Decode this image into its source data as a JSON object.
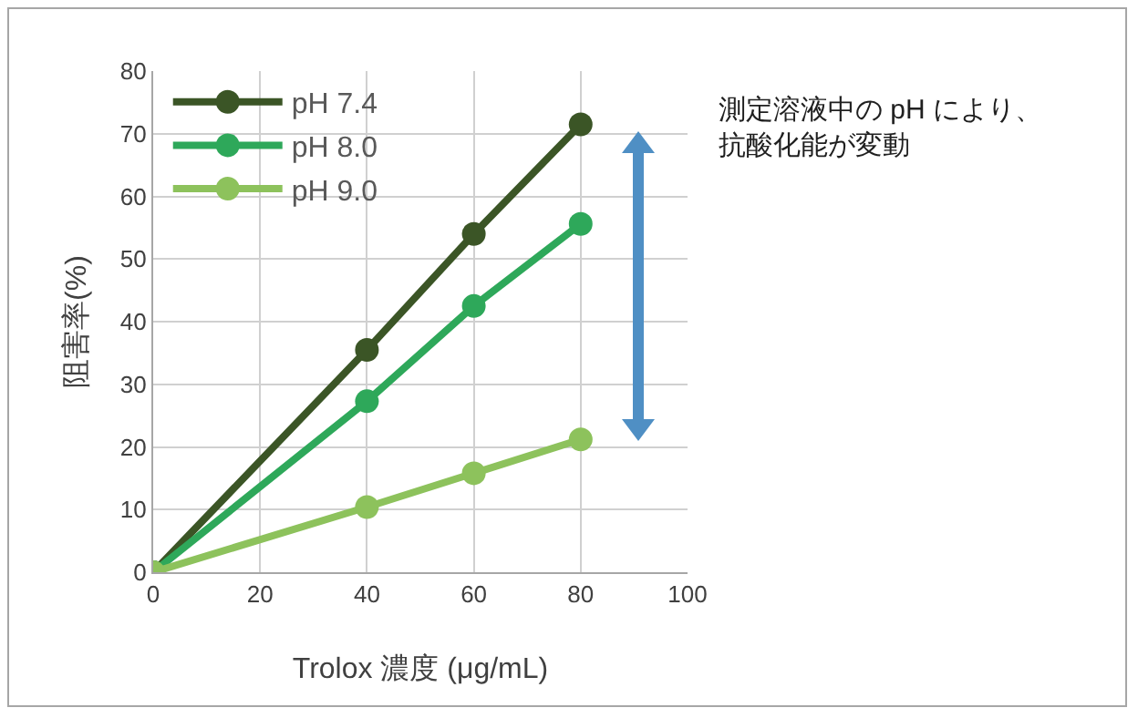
{
  "chart_data": {
    "type": "line",
    "xlabel": "Trolox 濃度 (μg/mL)",
    "ylabel": "阻害率(%)",
    "x": [
      0,
      40,
      60,
      80
    ],
    "series": [
      {
        "name": "pH 7.4",
        "color": "#3b5526",
        "values": [
          0,
          35.5,
          54,
          71.5
        ]
      },
      {
        "name": "pH 8.0",
        "color": "#2ea85a",
        "values": [
          0,
          27.3,
          42.5,
          55.6
        ]
      },
      {
        "name": "pH 9.0",
        "color": "#8dc25c",
        "values": [
          0,
          10.4,
          15.8,
          21.2
        ]
      }
    ],
    "xlim": [
      0,
      100
    ],
    "xticks": [
      0,
      20,
      40,
      60,
      80,
      100
    ],
    "ylim": [
      0,
      80
    ],
    "yticks": [
      0,
      10,
      20,
      30,
      40,
      50,
      60,
      70,
      80
    ],
    "grid": true,
    "legend": "top left",
    "marker": "circle",
    "line_style": "solid",
    "annotations": [
      "測定溶液中の pH により、抗酸化能が変動"
    ]
  }
}
